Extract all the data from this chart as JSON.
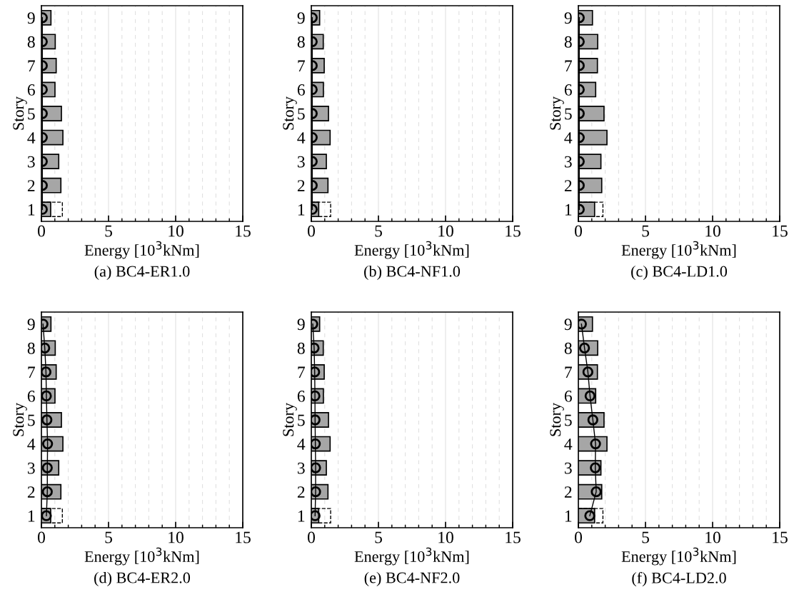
{
  "chart_data": [
    {
      "type": "bar",
      "orientation": "horizontal",
      "ylabel": "Story",
      "xlabel": "Energy [10$^{3}$kNm]",
      "annotations": [
        "(a) BC4-ER1.0"
      ],
      "categories": [
        "9",
        "8",
        "7",
        "6",
        "5",
        "4",
        "3",
        "2",
        "1"
      ],
      "xlim": [
        0,
        15
      ],
      "xticks": [
        0,
        5,
        10,
        15
      ],
      "grid": "x",
      "series": [
        {
          "line_style": "dashed",
          "color": "#000000",
          "values": [
            null,
            null,
            null,
            null,
            null,
            null,
            null,
            null,
            1.56
          ]
        },
        {
          "color": "#a6a6a6",
          "values": [
            0.71,
            1.03,
            1.1,
            1.01,
            1.49,
            1.6,
            1.29,
            1.45,
            0.69
          ]
        },
        {
          "type": "line",
          "marker": "circle",
          "color": "#000000",
          "values": [
            0.07,
            0.07,
            0.07,
            0.07,
            0.07,
            0.07,
            0.07,
            0.07,
            0.07
          ]
        }
      ]
    },
    {
      "type": "bar",
      "orientation": "horizontal",
      "ylabel": "Story",
      "xlabel": "Energy [10$^{3}$kNm]",
      "annotations": [
        "(b) BC4-NF1.0"
      ],
      "categories": [
        "9",
        "8",
        "7",
        "6",
        "5",
        "4",
        "3",
        "2",
        "1"
      ],
      "xlim": [
        0,
        15
      ],
      "xticks": [
        0,
        5,
        10,
        15
      ],
      "grid": "x",
      "series": [
        {
          "line_style": "dashed",
          "color": "#000000",
          "values": [
            null,
            null,
            null,
            null,
            null,
            null,
            null,
            null,
            1.44
          ]
        },
        {
          "color": "#a6a6a6",
          "values": [
            0.62,
            0.89,
            0.96,
            0.9,
            1.28,
            1.4,
            1.12,
            1.24,
            0.55
          ]
        },
        {
          "type": "line",
          "marker": "circle",
          "color": "#000000",
          "values": [
            0.07,
            0.07,
            0.07,
            0.07,
            0.07,
            0.07,
            0.07,
            0.07,
            0.07
          ]
        }
      ]
    },
    {
      "type": "bar",
      "orientation": "horizontal",
      "ylabel": "Story",
      "xlabel": "Energy [10$^{3}$kNm]",
      "annotations": [
        "(c) BC4-LD1.0"
      ],
      "categories": [
        "9",
        "8",
        "7",
        "6",
        "5",
        "4",
        "3",
        "2",
        "1"
      ],
      "xlim": [
        0,
        15
      ],
      "xticks": [
        0,
        5,
        10,
        15
      ],
      "grid": "x",
      "series": [
        {
          "line_style": "dashed",
          "color": "#000000",
          "values": [
            null,
            null,
            null,
            null,
            null,
            null,
            null,
            null,
            1.83
          ]
        },
        {
          "color": "#a6a6a6",
          "values": [
            1.05,
            1.44,
            1.42,
            1.29,
            1.91,
            2.13,
            1.68,
            1.74,
            1.21
          ]
        },
        {
          "type": "line",
          "marker": "circle",
          "color": "#000000",
          "values": [
            0.07,
            0.07,
            0.07,
            0.07,
            0.07,
            0.07,
            0.07,
            0.07,
            0.07
          ]
        }
      ]
    },
    {
      "type": "bar",
      "orientation": "horizontal",
      "ylabel": "Story",
      "xlabel": "Energy [10$^{3}$kNm]",
      "annotations": [
        "(d) BC4-ER2.0"
      ],
      "categories": [
        "9",
        "8",
        "7",
        "6",
        "5",
        "4",
        "3",
        "2",
        "1"
      ],
      "xlim": [
        0,
        15
      ],
      "xticks": [
        0,
        5,
        10,
        15
      ],
      "grid": "x",
      "series": [
        {
          "line_style": "dashed",
          "color": "#000000",
          "values": [
            null,
            null,
            null,
            null,
            null,
            null,
            null,
            null,
            1.56
          ]
        },
        {
          "color": "#a6a6a6",
          "values": [
            0.71,
            1.03,
            1.1,
            1.01,
            1.49,
            1.6,
            1.29,
            1.45,
            0.69
          ]
        },
        {
          "type": "line",
          "marker": "circle",
          "color": "#000000",
          "values": [
            0.12,
            0.25,
            0.34,
            0.37,
            0.41,
            0.46,
            0.44,
            0.44,
            0.37
          ]
        }
      ]
    },
    {
      "type": "bar",
      "orientation": "horizontal",
      "ylabel": "Story",
      "xlabel": "Energy [10$^{3}$kNm]",
      "annotations": [
        "(e) BC4-NF2.0"
      ],
      "categories": [
        "9",
        "8",
        "7",
        "6",
        "5",
        "4",
        "3",
        "2",
        "1"
      ],
      "xlim": [
        0,
        15
      ],
      "xticks": [
        0,
        5,
        10,
        15
      ],
      "grid": "x",
      "series": [
        {
          "line_style": "dashed",
          "color": "#000000",
          "values": [
            null,
            null,
            null,
            null,
            null,
            null,
            null,
            null,
            1.44
          ]
        },
        {
          "color": "#a6a6a6",
          "values": [
            0.62,
            0.89,
            0.96,
            0.9,
            1.28,
            1.4,
            1.12,
            1.24,
            0.55
          ]
        },
        {
          "type": "line",
          "marker": "circle",
          "color": "#000000",
          "values": [
            0.11,
            0.21,
            0.25,
            0.27,
            0.28,
            0.3,
            0.32,
            0.32,
            0.28
          ]
        }
      ]
    },
    {
      "type": "bar",
      "orientation": "horizontal",
      "ylabel": "Story",
      "xlabel": "Energy [10$^{3}$kNm]",
      "annotations": [
        "(f) BC4-LD2.0"
      ],
      "categories": [
        "9",
        "8",
        "7",
        "6",
        "5",
        "4",
        "3",
        "2",
        "1"
      ],
      "xlim": [
        0,
        15
      ],
      "xticks": [
        0,
        5,
        10,
        15
      ],
      "grid": "x",
      "series": [
        {
          "line_style": "dashed",
          "color": "#000000",
          "values": [
            null,
            null,
            null,
            null,
            null,
            null,
            null,
            null,
            1.83
          ]
        },
        {
          "color": "#a6a6a6",
          "values": [
            1.05,
            1.44,
            1.42,
            1.29,
            1.91,
            2.13,
            1.68,
            1.74,
            1.21
          ]
        },
        {
          "type": "line",
          "marker": "circle",
          "color": "#000000",
          "values": [
            0.23,
            0.46,
            0.71,
            0.87,
            1.08,
            1.28,
            1.26,
            1.33,
            0.85
          ]
        }
      ]
    }
  ]
}
